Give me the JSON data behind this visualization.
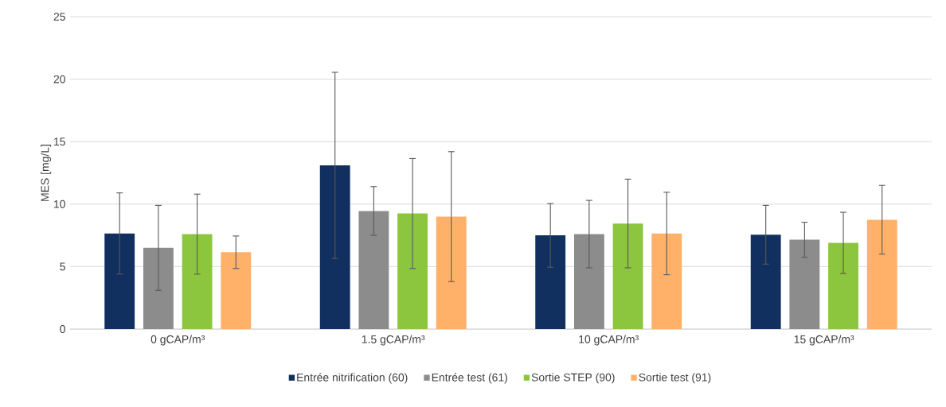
{
  "chart_data": {
    "type": "bar",
    "ylabel": "MES [mg/L]",
    "categories": [
      "0 gCAP/m³",
      "1.5 gCAP/m³",
      "10 gCAP/m³",
      "15 gCAP/m³"
    ],
    "series": [
      {
        "name": "Entrée nitrification (60)",
        "color": "#12305f",
        "values": [
          7.65,
          13.1,
          7.5,
          7.55
        ],
        "errors": [
          3.25,
          7.45,
          2.55,
          2.35
        ]
      },
      {
        "name": "Entrée test (61)",
        "color": "#8c8c8c",
        "values": [
          6.5,
          9.45,
          7.6,
          7.15
        ],
        "errors": [
          3.4,
          1.95,
          2.7,
          1.4
        ]
      },
      {
        "name": "Sortie STEP (90)",
        "color": "#8cc63f",
        "values": [
          7.6,
          9.25,
          8.45,
          6.9
        ],
        "errors": [
          3.2,
          4.4,
          3.55,
          2.45
        ]
      },
      {
        "name": "Sortie test (91)",
        "color": "#ffb169",
        "values": [
          6.15,
          9.0,
          7.65,
          8.75
        ],
        "errors": [
          1.3,
          5.2,
          3.3,
          2.75
        ]
      }
    ],
    "ylim": [
      0,
      25
    ],
    "yticks": [
      0,
      5,
      10,
      15,
      20,
      25
    ],
    "grid": "y",
    "legend": "bottom"
  }
}
